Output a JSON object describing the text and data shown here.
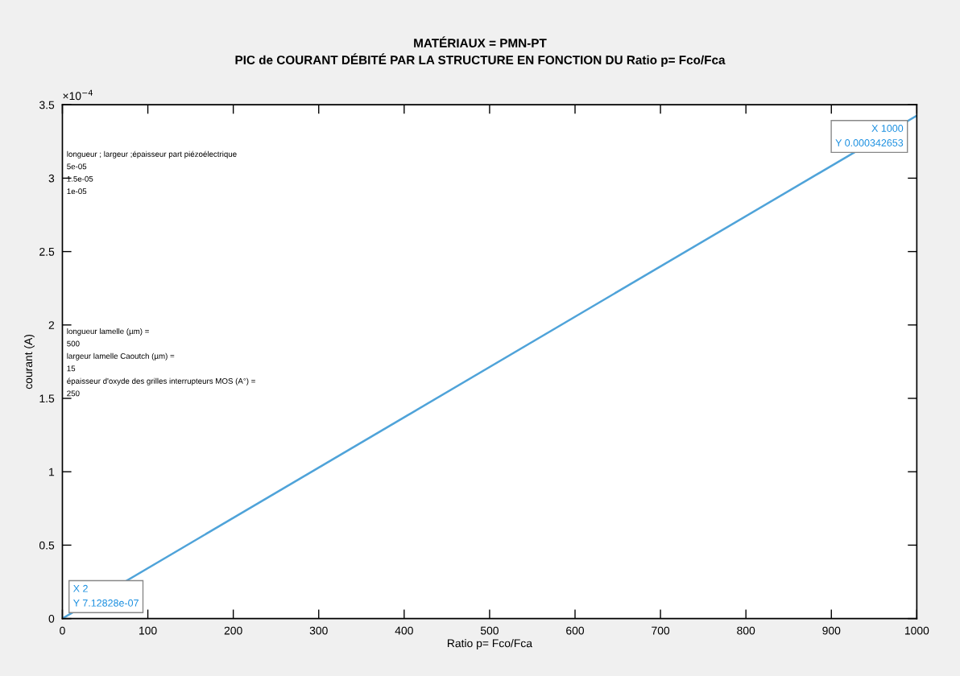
{
  "chart_data": {
    "type": "line",
    "title": "MATÉRIAUX = PMN-PT",
    "subtitle": "PIC de COURANT DÉBITÉ PAR LA STRUCTURE EN FONCTION DU Ratio p= Fco/Fca",
    "xlabel": "Ratio p= Fco/Fca",
    "ylabel": "courant (A)",
    "x": [
      2,
      1000
    ],
    "series": [
      {
        "color": "#4fa3d9",
        "values": [
          0.00713,
          3.42653
        ]
      }
    ],
    "xlim": [
      0,
      1000
    ],
    "ylim": [
      0,
      3.5
    ],
    "xticks": [
      0,
      100,
      200,
      300,
      400,
      500,
      600,
      700,
      800,
      900,
      1000
    ],
    "yticks": [
      0,
      0.5,
      1,
      1.5,
      2,
      2.5,
      3,
      3.5
    ],
    "grid": false,
    "marker": "none",
    "line_style": "solid",
    "annotations": [
      "×10$^{−4}$",
      "longueur ; largeur ;épaisseur part piézoélectrique\n5e-05\n1.5e-05\n1e-05",
      "longueur lamelle (µm) =\n500\nlargeur lamelle Caoutch (µm) =\n15\népaisseur d'oxyde des grilles interrupteurs MOS (A°) =\n250",
      {
        "text": "X 2\nY 7.12828e-07",
        "x": 2,
        "y": 0.00713
      },
      {
        "text": "X 1000\nY 0.000342653",
        "x": 1000,
        "y": 3.42653
      }
    ]
  }
}
